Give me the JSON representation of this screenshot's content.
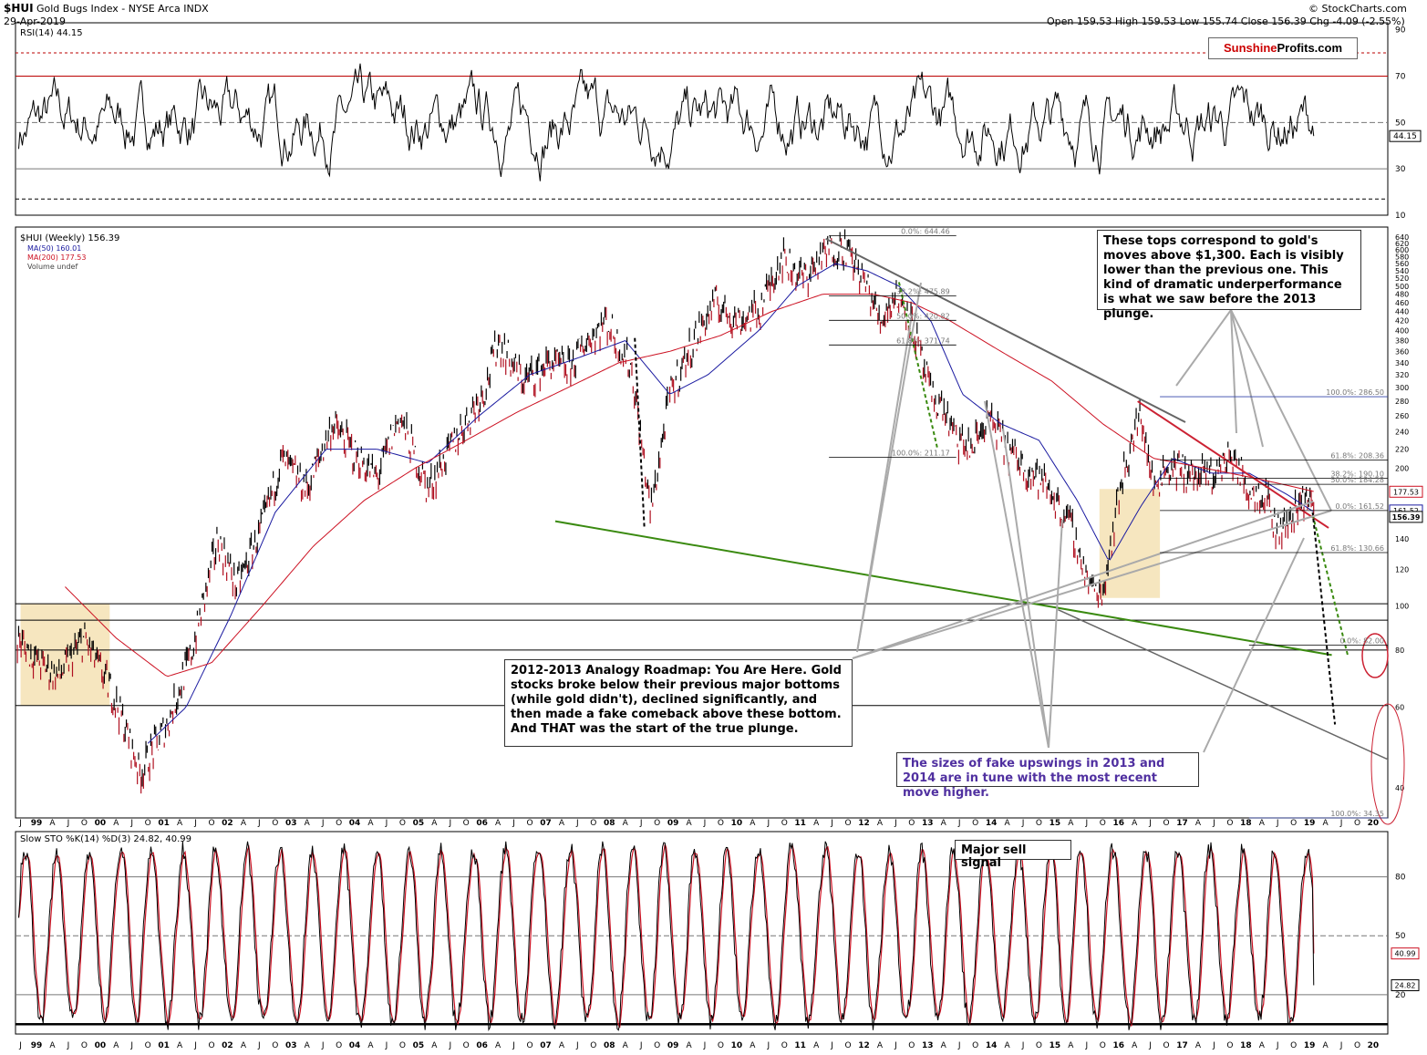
{
  "header": {
    "symbol": "$HUI",
    "name": "Gold Bugs Index - NYSE Arca INDX",
    "date": "29-Apr-2019",
    "ohlc": "Open 159.53  High 159.53  Low 155.74  Close 156.39  Chg -4.09 (-2.55%)",
    "credit": "© StockCharts.com",
    "logo_red": "Sunshine",
    "logo_black": "Profits.com"
  },
  "legend": {
    "rsi": "RSI(14) 44.15",
    "price": "$HUI (Weekly) 156.39",
    "ma50": "MA(50) 160.01",
    "ma200": "MA(200) 177.53",
    "volume": "Volume undef",
    "sto": "Slow STO %K(14) %D(3) 24.82, 40.99"
  },
  "colors": {
    "price": "#000000",
    "ma50": "#1a1aa0",
    "ma200": "#cc1122",
    "support": "#3a8a10",
    "resistance": "#cc2233",
    "highlight": "#f5e2b4",
    "purple_text": "#5030a0"
  },
  "annotations": {
    "tops_note": "These tops correspond to gold's moves above $1,300. Each is visibly lower than the previous one. This kind of dramatic underperformance is what we saw before the 2013 plunge.",
    "roadmap_note": "2012-2013 Analogy Roadmap: You Are Here. Gold stocks broke below their previous major bottoms (while gold didn't), declined significantly, and then made a fake comeback above these bottom. And THAT was the start of the true plunge.",
    "upswing_note": "The sizes of fake upswings in 2013 and 2014 are in tune with the most recent move higher.",
    "sell_signal": "Major sell signal"
  },
  "chart_data": [
    {
      "type": "line",
      "panel": "RSI",
      "title": "RSI(14) 44.15",
      "last_value": 44.15,
      "ylim": [
        10,
        90
      ],
      "yticks": [
        "90",
        "70",
        "50",
        "30",
        "10"
      ],
      "reference_levels": [
        70,
        50,
        30,
        80,
        17
      ],
      "marker_labels": [
        "44.15"
      ]
    },
    {
      "type": "line",
      "panel": "Price",
      "title": "$HUI (Weekly) 156.39",
      "yscale": "log",
      "ylim": [
        34,
        660
      ],
      "yticks": [
        "640",
        "620",
        "600",
        "580",
        "560",
        "540",
        "520",
        "500",
        "480",
        "460",
        "440",
        "420",
        "400",
        "380",
        "360",
        "340",
        "320",
        "300",
        "280",
        "260",
        "240",
        "220",
        "200",
        "180",
        "160",
        "140",
        "120",
        "100",
        "80",
        "60",
        "40"
      ],
      "marker_labels": [
        "177.53",
        "161.52",
        "156.39"
      ],
      "x_labels": [
        "J",
        "99",
        "A",
        "J",
        "O",
        "00",
        "A",
        "J",
        "O",
        "01",
        "A",
        "J",
        "O",
        "02",
        "A",
        "J",
        "O",
        "03",
        "A",
        "J",
        "O",
        "04",
        "A",
        "J",
        "O",
        "05",
        "A",
        "J",
        "O",
        "06",
        "A",
        "J",
        "O",
        "07",
        "A",
        "J",
        "O",
        "08",
        "A",
        "J",
        "O",
        "09",
        "A",
        "J",
        "O",
        "10",
        "A",
        "J",
        "O",
        "11",
        "A",
        "J",
        "O",
        "12",
        "A",
        "J",
        "O",
        "13",
        "A",
        "J",
        "O",
        "14",
        "A",
        "J",
        "O",
        "15",
        "A",
        "J",
        "O",
        "16",
        "A",
        "J",
        "O",
        "17",
        "A",
        "J",
        "O",
        "18",
        "A",
        "J",
        "O",
        "19",
        "A",
        "J",
        "O",
        "20"
      ],
      "series": [
        {
          "name": "$HUI (Weekly)",
          "last": 156.39,
          "x": [
            1998.95,
            1999.3,
            1999.6,
            2000.0,
            2000.5,
            2000.88,
            2001.3,
            2001.7,
            2002.1,
            2002.4,
            2002.8,
            2003.1,
            2003.5,
            2003.9,
            2004.3,
            2004.6,
            2004.95,
            2005.4,
            2005.9,
            2006.3,
            2006.5,
            2006.9,
            2007.3,
            2007.6,
            2007.9,
            2008.2,
            2008.6,
            2008.9,
            2009.2,
            2009.5,
            2009.9,
            2010.3,
            2010.6,
            2010.95,
            2011.3,
            2011.7,
            2011.95,
            2012.3,
            2012.5,
            2012.75,
            2012.95,
            2013.3,
            2013.5,
            2013.7,
            2013.95,
            2014.2,
            2014.5,
            2014.8,
            2015.1,
            2015.5,
            2015.8,
            2016.0,
            2016.3,
            2016.6,
            2016.8,
            2016.95,
            2017.2,
            2017.5,
            2017.8,
            2018.0,
            2018.3,
            2018.6,
            2018.7,
            2018.9,
            2019.1,
            2019.25,
            2019.33
          ],
          "y": [
            85,
            75,
            70,
            85,
            62,
            43,
            55,
            80,
            140,
            110,
            150,
            210,
            180,
            250,
            210,
            190,
            260,
            180,
            240,
            300,
            380,
            310,
            340,
            330,
            380,
            420,
            330,
            160,
            290,
            360,
            460,
            420,
            440,
            580,
            520,
            600,
            610,
            500,
            420,
            480,
            440,
            290,
            270,
            230,
            220,
            260,
            220,
            200,
            185,
            150,
            110,
            107,
            190,
            265,
            180,
            200,
            200,
            190,
            195,
            215,
            180,
            175,
            148,
            150,
            170,
            175,
            156.39
          ]
        },
        {
          "name": "MA(50)",
          "last": 160.01,
          "x": [
            2001.0,
            2001.6,
            2002.3,
            2003.0,
            2003.8,
            2004.6,
            2005.4,
            2006.2,
            2007.0,
            2007.8,
            2008.5,
            2009.2,
            2009.8,
            2010.6,
            2011.2,
            2011.8,
            2012.3,
            2012.8,
            2013.3,
            2013.8,
            2014.4,
            2015.0,
            2015.6,
            2016.1,
            2016.6,
            2017.1,
            2017.7,
            2018.3,
            2018.9,
            2019.33
          ],
          "y": [
            50,
            60,
            95,
            160,
            220,
            220,
            205,
            260,
            320,
            350,
            380,
            290,
            320,
            400,
            500,
            560,
            540,
            500,
            420,
            290,
            250,
            230,
            170,
            125,
            165,
            210,
            195,
            195,
            175,
            160.01
          ]
        },
        {
          "name": "MA(200)",
          "last": 177.53,
          "x": [
            1999.7,
            2000.5,
            2001.3,
            2002.0,
            2002.8,
            2003.6,
            2004.4,
            2005.2,
            2006.0,
            2006.8,
            2007.6,
            2008.4,
            2009.2,
            2010.0,
            2010.8,
            2011.6,
            2012.4,
            2013.0,
            2013.6,
            2014.4,
            2015.2,
            2016.0,
            2016.8,
            2017.6,
            2018.4,
            2019.0,
            2019.33
          ],
          "y": [
            110,
            85,
            70,
            75,
            100,
            135,
            170,
            200,
            230,
            265,
            300,
            340,
            360,
            390,
            440,
            480,
            480,
            460,
            420,
            360,
            310,
            250,
            210,
            200,
            190,
            182,
            177.53
          ]
        }
      ],
      "fibonacci_2011": [
        {
          "label": "0.0%: 644.46",
          "value": 644.46
        },
        {
          "label": "38.2%: 475.89",
          "value": 475.89
        },
        {
          "label": "50.0%: 420.82",
          "value": 420.82
        },
        {
          "label": "61.8%: 371.74",
          "value": 371.74
        },
        {
          "label": "100.0%: 211.17",
          "value": 211.17
        }
      ],
      "fibonacci_2016": [
        {
          "label": "100.0%: 286.50",
          "value": 286.5
        },
        {
          "label": "61.8%: 208.36",
          "value": 208.36
        },
        {
          "label": "38.2%: 190.10",
          "value": 190.1
        },
        {
          "label": "50.0%: 184.28",
          "value": 184.28
        },
        {
          "label": "0.0%: 161.52",
          "value": 161.52
        },
        {
          "label": "61.8%: 130.66",
          "value": 130.66
        },
        {
          "label": "0.0%: 82.00",
          "value": 82.0
        },
        {
          "label": "100.0%: 34.35",
          "value": 34.35
        }
      ]
    },
    {
      "type": "line",
      "panel": "Slow Stochastic",
      "title": "Slow STO %K(14) %D(3) 24.82, 40.99",
      "ylim": [
        0,
        100
      ],
      "yticks": [
        "80",
        "50",
        "20"
      ],
      "reference_levels": [
        80,
        50,
        20
      ],
      "marker_labels": [
        "40.99",
        "24.82"
      ],
      "series": [
        {
          "name": "%K(14)",
          "last": 24.82
        },
        {
          "name": "%D(3)",
          "last": 40.99
        }
      ]
    }
  ]
}
